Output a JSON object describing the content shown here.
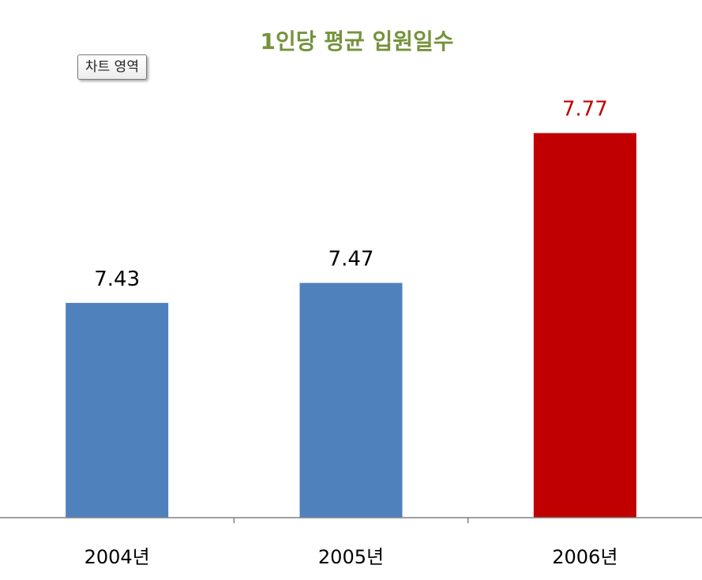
{
  "chart_data": {
    "type": "bar",
    "title": "1인당 평균 입원일수",
    "categories": [
      "2004년",
      "2005년",
      "2006년"
    ],
    "values": [
      7.43,
      7.47,
      7.77
    ],
    "value_labels": [
      "7.43",
      "7.47",
      "7.77"
    ],
    "xlabel": "",
    "ylabel": "",
    "ylim": [
      7.0,
      7.85
    ],
    "grid": false,
    "legend": "none",
    "colors": {
      "default_bar": "#4f81bd",
      "highlight_bar": "#c00000",
      "default_label": "#000000",
      "highlight_label": "#c00000",
      "title": "#76923c",
      "axis": "#808080"
    },
    "highlight_index": 2
  },
  "tooltip": {
    "text": "차트 영역"
  }
}
